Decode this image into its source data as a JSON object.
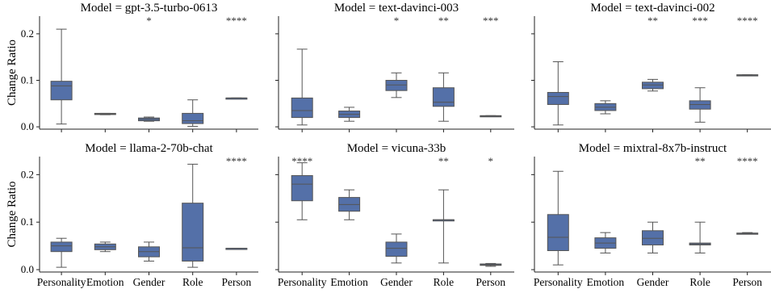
{
  "chart_data": {
    "type": "box",
    "ylabel": "Change Ratio",
    "ylim": [
      -0.005,
      0.238
    ],
    "yticks": [
      0.0,
      0.1,
      0.2
    ],
    "ytick_labels": [
      "0.0",
      "0.1",
      "0.2"
    ],
    "categories": [
      "Personality",
      "Emotion",
      "Gender",
      "Role",
      "Person"
    ],
    "box_color": "#5470a8",
    "line_color": "#555555",
    "panels": [
      {
        "title": "Model = gpt-3.5-turbo-0613",
        "boxes": [
          {
            "min": 0.006,
            "q1": 0.058,
            "median": 0.088,
            "q3": 0.098,
            "max": 0.21,
            "sig": ""
          },
          {
            "min": 0.026,
            "q1": 0.027,
            "median": 0.028,
            "q3": 0.029,
            "max": 0.029,
            "sig": ""
          },
          {
            "min": 0.012,
            "q1": 0.013,
            "median": 0.016,
            "q3": 0.019,
            "max": 0.021,
            "sig": "*"
          },
          {
            "min": 0.001,
            "q1": 0.007,
            "median": 0.013,
            "q3": 0.029,
            "max": 0.058,
            "sig": ""
          },
          {
            "min": 0.062,
            "q1": 0.062,
            "median": 0.062,
            "q3": 0.062,
            "max": 0.062,
            "sig": "****"
          }
        ]
      },
      {
        "title": "Model = text-davinci-003",
        "boxes": [
          {
            "min": 0.004,
            "q1": 0.02,
            "median": 0.035,
            "q3": 0.062,
            "max": 0.167,
            "sig": ""
          },
          {
            "min": 0.012,
            "q1": 0.02,
            "median": 0.027,
            "q3": 0.034,
            "max": 0.042,
            "sig": ""
          },
          {
            "min": 0.063,
            "q1": 0.078,
            "median": 0.09,
            "q3": 0.1,
            "max": 0.116,
            "sig": "*"
          },
          {
            "min": 0.012,
            "q1": 0.044,
            "median": 0.053,
            "q3": 0.084,
            "max": 0.116,
            "sig": "**"
          },
          {
            "min": 0.022,
            "q1": 0.022,
            "median": 0.023,
            "q3": 0.024,
            "max": 0.024,
            "sig": "***"
          }
        ]
      },
      {
        "title": "Model = text-davinci-002",
        "boxes": [
          {
            "min": 0.004,
            "q1": 0.048,
            "median": 0.065,
            "q3": 0.074,
            "max": 0.14,
            "sig": ""
          },
          {
            "min": 0.028,
            "q1": 0.035,
            "median": 0.042,
            "q3": 0.05,
            "max": 0.056,
            "sig": ""
          },
          {
            "min": 0.077,
            "q1": 0.082,
            "median": 0.09,
            "q3": 0.096,
            "max": 0.102,
            "sig": "**"
          },
          {
            "min": 0.01,
            "q1": 0.038,
            "median": 0.048,
            "q3": 0.056,
            "max": 0.084,
            "sig": "***"
          },
          {
            "min": 0.111,
            "q1": 0.111,
            "median": 0.111,
            "q3": 0.112,
            "max": 0.112,
            "sig": "****"
          }
        ]
      },
      {
        "title": "Model = llama-2-70b-chat",
        "boxes": [
          {
            "min": 0.005,
            "q1": 0.038,
            "median": 0.05,
            "q3": 0.058,
            "max": 0.066,
            "sig": ""
          },
          {
            "min": 0.038,
            "q1": 0.042,
            "median": 0.048,
            "q3": 0.054,
            "max": 0.058,
            "sig": ""
          },
          {
            "min": 0.018,
            "q1": 0.027,
            "median": 0.038,
            "q3": 0.048,
            "max": 0.058,
            "sig": ""
          },
          {
            "min": 0.005,
            "q1": 0.018,
            "median": 0.046,
            "q3": 0.14,
            "max": 0.222,
            "sig": ""
          },
          {
            "min": 0.045,
            "q1": 0.045,
            "median": 0.045,
            "q3": 0.045,
            "max": 0.045,
            "sig": "****"
          }
        ]
      },
      {
        "title": "Model = vicuna-33b",
        "boxes": [
          {
            "min": 0.105,
            "q1": 0.145,
            "median": 0.18,
            "q3": 0.198,
            "max": 0.225,
            "sig": "****"
          },
          {
            "min": 0.105,
            "q1": 0.123,
            "median": 0.137,
            "q3": 0.152,
            "max": 0.168,
            "sig": ""
          },
          {
            "min": 0.014,
            "q1": 0.028,
            "median": 0.045,
            "q3": 0.058,
            "max": 0.075,
            "sig": ""
          },
          {
            "min": 0.014,
            "q1": 0.105,
            "median": 0.105,
            "q3": 0.105,
            "max": 0.168,
            "sig": "**"
          },
          {
            "min": 0.007,
            "q1": 0.009,
            "median": 0.01,
            "q3": 0.012,
            "max": 0.013,
            "sig": "*"
          }
        ]
      },
      {
        "title": "Model = mixtral-8x7b-instruct",
        "boxes": [
          {
            "min": 0.01,
            "q1": 0.04,
            "median": 0.068,
            "q3": 0.116,
            "max": 0.207,
            "sig": ""
          },
          {
            "min": 0.035,
            "q1": 0.045,
            "median": 0.056,
            "q3": 0.067,
            "max": 0.078,
            "sig": ""
          },
          {
            "min": 0.035,
            "q1": 0.052,
            "median": 0.066,
            "q3": 0.082,
            "max": 0.1,
            "sig": ""
          },
          {
            "min": 0.035,
            "q1": 0.052,
            "median": 0.054,
            "q3": 0.056,
            "max": 0.1,
            "sig": "**"
          },
          {
            "min": 0.075,
            "q1": 0.075,
            "median": 0.076,
            "q3": 0.077,
            "max": 0.078,
            "sig": "****"
          }
        ]
      }
    ]
  }
}
